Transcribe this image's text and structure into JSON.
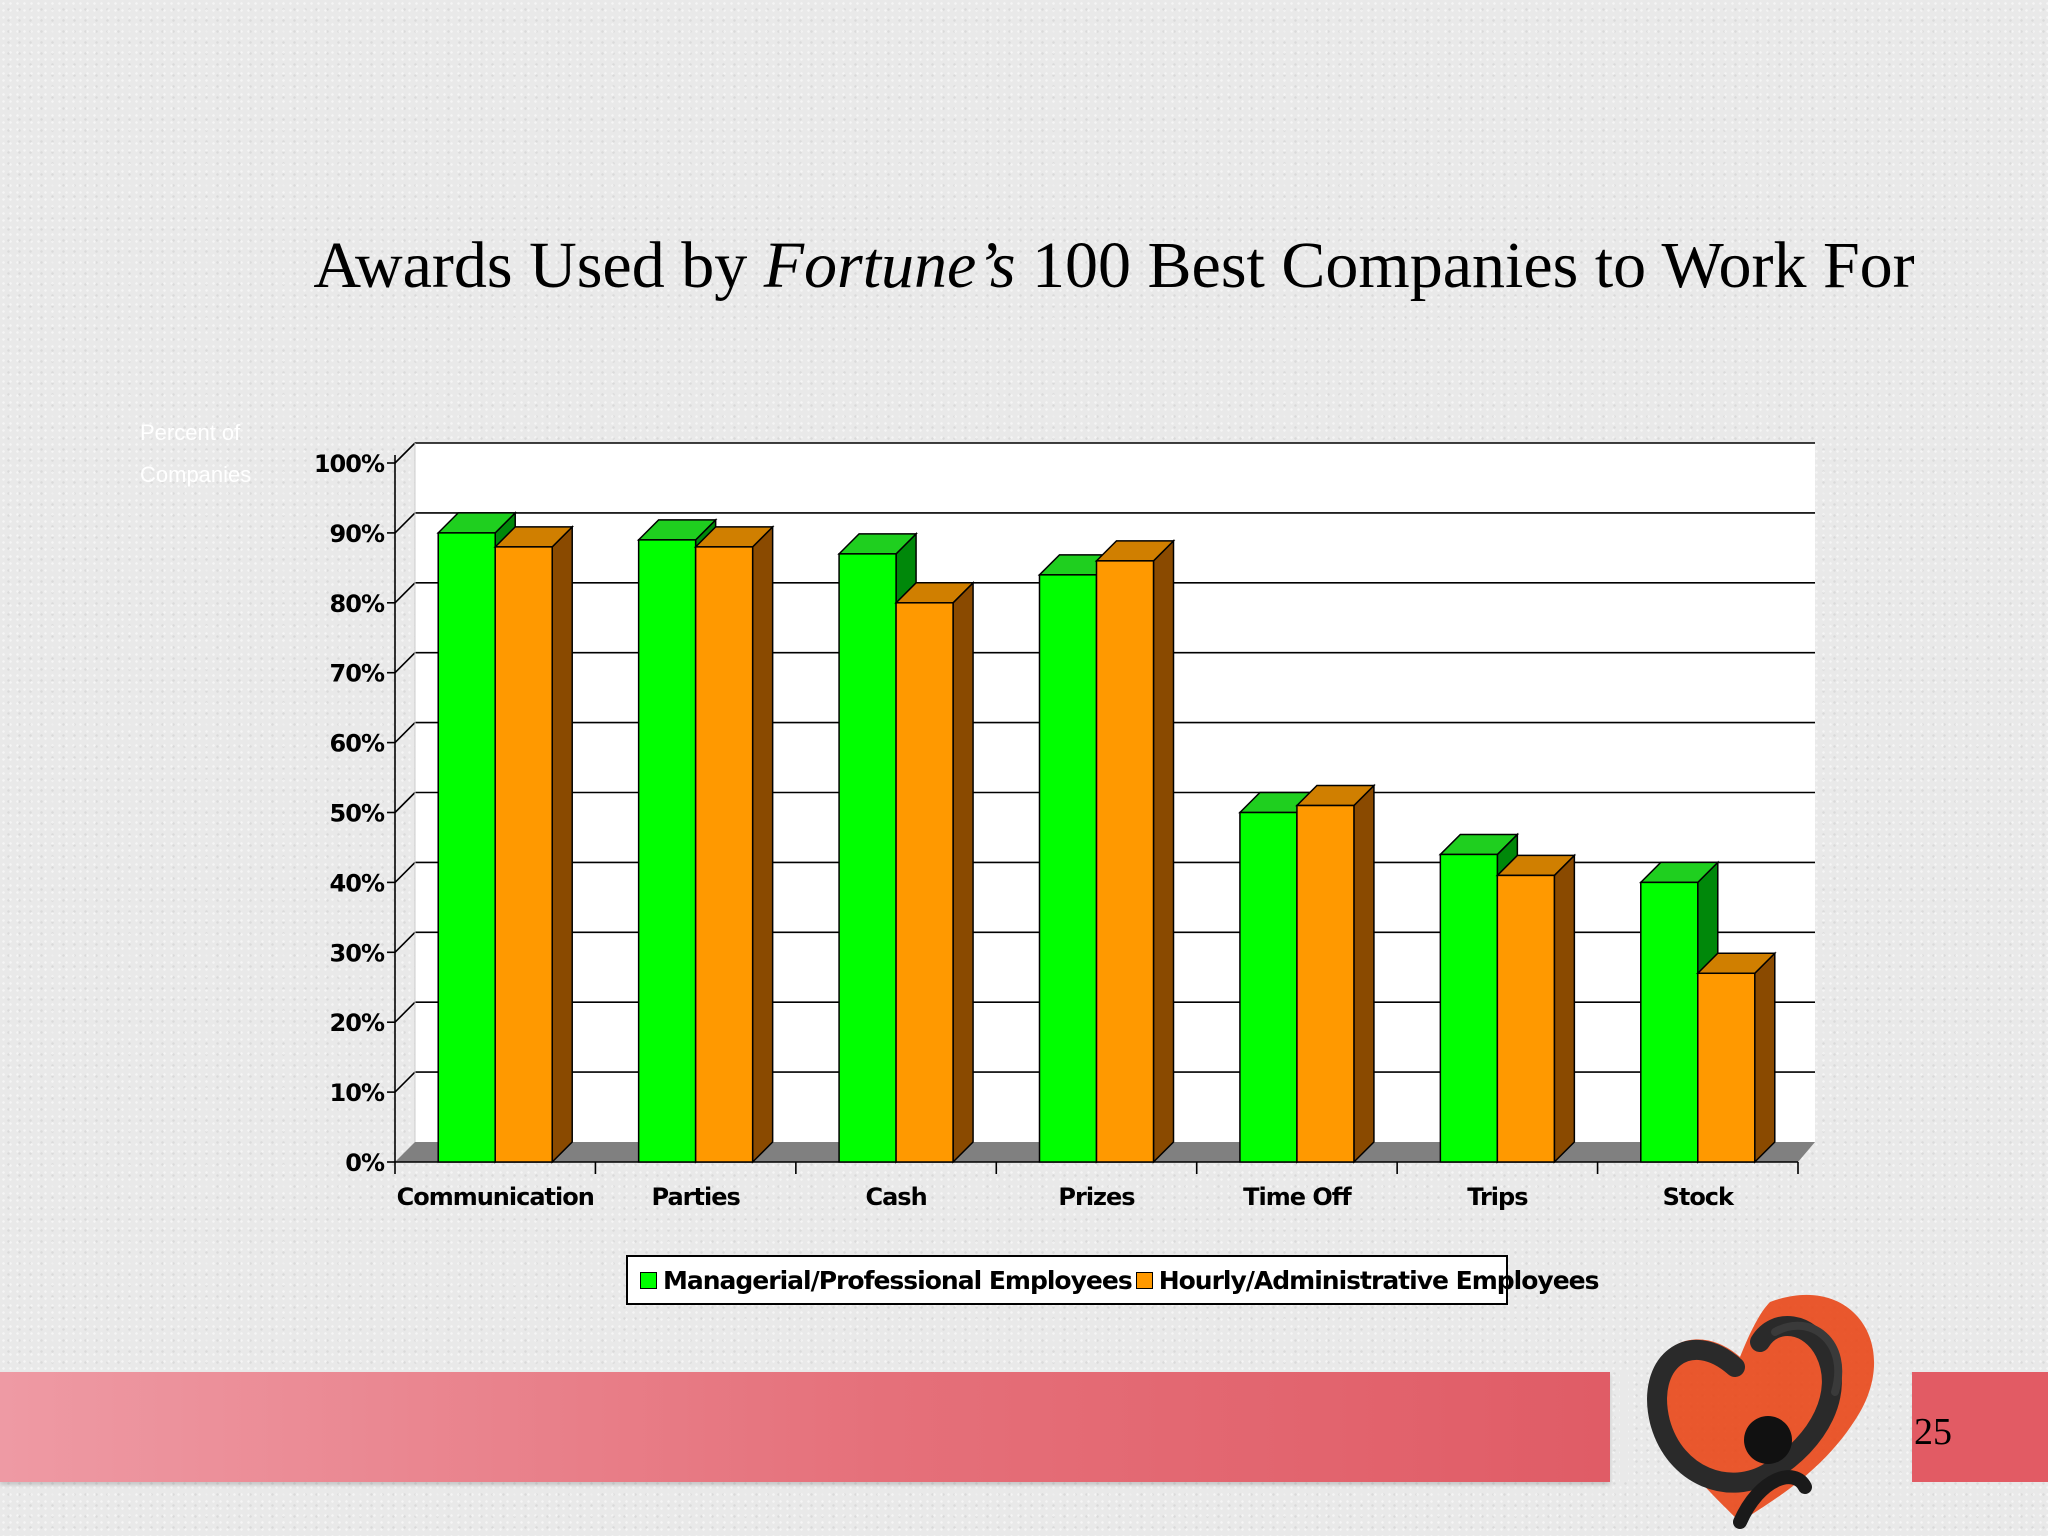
{
  "slide": {
    "title_part1": "Awards Used by ",
    "title_italic": "Fortune’s",
    "title_part2": " 100 Best Companies to Work For",
    "page_number": "25"
  },
  "chart_data": {
    "type": "bar",
    "categories": [
      "Communication",
      "Parties",
      "Cash",
      "Prizes",
      "Time Off",
      "Trips",
      "Stock"
    ],
    "series": [
      {
        "name": "Managerial/Professional Employees",
        "values": [
          90,
          89,
          87,
          84,
          50,
          44,
          40
        ],
        "color": "#00ff00"
      },
      {
        "name": "Hourly/Administrative Employees",
        "values": [
          88,
          88,
          80,
          86,
          51,
          41,
          27
        ],
        "color": "#ff9900"
      }
    ],
    "ylabel_line1": "Percent of",
    "ylabel_line2": "Companies",
    "ylim": [
      0,
      100
    ],
    "yticks": [
      "0%",
      "10%",
      "20%",
      "30%",
      "40%",
      "50%",
      "60%",
      "70%",
      "80%",
      "90%",
      "100%"
    ],
    "grid": true,
    "legend_position": "bottom",
    "style": "3d"
  }
}
